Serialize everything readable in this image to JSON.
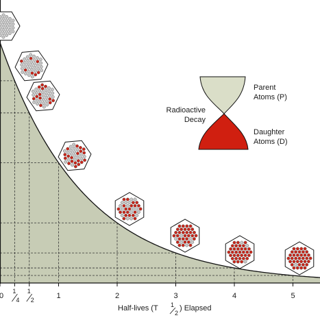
{
  "chart_data": {
    "type": "area",
    "xlabel": "Half-lives (T½) Elapsed",
    "x_ticks": [
      "0",
      "1/4",
      "1/2",
      "1",
      "2",
      "3",
      "4",
      "5"
    ],
    "x": [
      0,
      0.25,
      0.5,
      1,
      2,
      3,
      4,
      5,
      5.5
    ],
    "series": [
      {
        "values": [
          1.0,
          0.841,
          0.707,
          0.5,
          0.25,
          0.125,
          0.0625,
          0.03125,
          0.0221
        ]
      }
    ],
    "xlim": [
      0,
      5.5
    ],
    "ylim": [
      0,
      1
    ],
    "grid": true
  },
  "xlabel_parts": {
    "main": "Half-lives (T",
    "sub_num": "1",
    "sub_den": "2",
    "end": ") Elapsed"
  },
  "hourglass": {
    "top_label_1": "Parent",
    "top_label_2": "Atoms (P)",
    "middle_label_1": "Radioactive",
    "middle_label_2": "Decay",
    "bottom_label_1": "Daughter",
    "bottom_label_2": "Atoms (D)",
    "parent_color": "#dadec8",
    "daughter_color": "#d01f10"
  },
  "colors": {
    "fill": "#c7ccb5",
    "curve": "#111111",
    "grid": "#333333",
    "atom_parent": "#c8c8c8",
    "atom_daughter": "#c8261a"
  },
  "samples": [
    {
      "half_lives": 0,
      "daughter_fraction": 0
    },
    {
      "half_lives": 0.25,
      "daughter_fraction": 0.16
    },
    {
      "half_lives": 0.5,
      "daughter_fraction": 0.29
    },
    {
      "half_lives": 1,
      "daughter_fraction": 0.5
    },
    {
      "half_lives": 2,
      "daughter_fraction": 0.75
    },
    {
      "half_lives": 3,
      "daughter_fraction": 0.875
    },
    {
      "half_lives": 4,
      "daughter_fraction": 0.94
    },
    {
      "half_lives": 5,
      "daughter_fraction": 0.97
    }
  ]
}
